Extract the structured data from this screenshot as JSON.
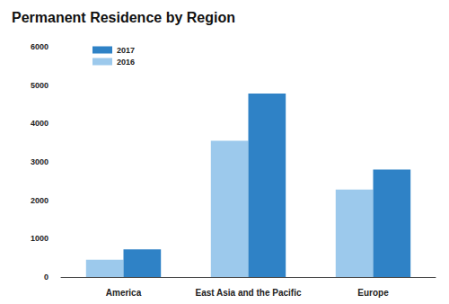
{
  "chart_data": {
    "type": "bar",
    "title": "Permanent Residence by Region",
    "categories": [
      "America",
      "East Asia and the Pacific",
      "Europe"
    ],
    "series": [
      {
        "name": "2016",
        "color": "#9cc9ec",
        "values": [
          450,
          3550,
          2280
        ]
      },
      {
        "name": "2017",
        "color": "#2f82c6",
        "values": [
          720,
          4780,
          2800
        ]
      }
    ],
    "ylim": [
      0,
      6000
    ],
    "yticks": [
      0,
      1000,
      2000,
      3000,
      4000,
      5000,
      6000
    ],
    "grid": false,
    "legend": "top-left"
  }
}
